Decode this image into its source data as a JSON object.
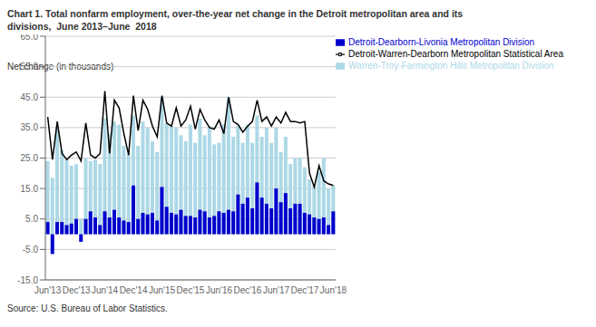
{
  "chart_data": {
    "type": "bar",
    "title": "Chart 1. Total nonfarm employment, over-the-year net change in the Detroit metropolitan area and its\ndivisions,  June 2013–June  2018",
    "ylabel": "Net change (in thousands)",
    "source": "Source: U.S. Bureau of Labor Statistics.",
    "categories": [
      "Jun'13",
      null,
      null,
      null,
      null,
      null,
      "Dec'13",
      null,
      null,
      null,
      null,
      null,
      "Jun'14",
      null,
      null,
      null,
      null,
      null,
      "Dec'14",
      null,
      null,
      null,
      null,
      null,
      "Jun'15",
      null,
      null,
      null,
      null,
      null,
      "Dec'15",
      null,
      null,
      null,
      null,
      null,
      "Jun'16",
      null,
      null,
      null,
      null,
      null,
      "Dec'16",
      null,
      null,
      null,
      null,
      null,
      "Jun'17",
      null,
      null,
      null,
      null,
      null,
      "Dec'17",
      null,
      null,
      null,
      null,
      null,
      "Jun'18"
    ],
    "series": [
      {
        "name": "Warren-Troy-Farmington Hills Metropolitan Division",
        "type": "bar",
        "color": "#ADD8E6",
        "values": [
          24.0,
          18.5,
          35.0,
          27.5,
          24.5,
          22.5,
          23.0,
          5.0,
          25.0,
          24.0,
          24.5,
          23.0,
          38.0,
          33.0,
          37.0,
          36.0,
          29.0,
          26.5,
          39.0,
          29.0,
          37.0,
          35.0,
          30.5,
          27.0,
          45.0,
          36.5,
          35.5,
          35.0,
          32.5,
          30.5,
          36.0,
          30.0,
          38.0,
          32.5,
          35.5,
          29.5,
          30.0,
          36.0,
          45.0,
          32.0,
          35.5,
          30.0,
          36.0,
          30.0,
          39.0,
          32.0,
          35.0,
          30.0,
          35.0,
          27.0,
          32.0,
          23.0,
          25.0,
          25.0,
          22.0,
          18.0,
          16.0,
          20.5,
          25.0,
          15.0,
          16.0
        ]
      },
      {
        "name": "Detroit-Dearborn-Livonia Metropolitan Division",
        "type": "bar",
        "color": "#0000CD",
        "values": [
          4.0,
          -6.5,
          4.0,
          4.0,
          3.0,
          3.5,
          5.0,
          -2.5,
          5.0,
          7.5,
          5.5,
          3.0,
          7.5,
          5.5,
          8.0,
          5.5,
          4.5,
          4.0,
          16.0,
          5.0,
          7.0,
          6.5,
          7.0,
          4.5,
          15.5,
          9.0,
          7.0,
          6.5,
          8.0,
          6.0,
          6.0,
          5.5,
          8.0,
          7.5,
          5.5,
          6.0,
          7.5,
          7.0,
          8.0,
          7.5,
          13.0,
          10.0,
          12.0,
          8.5,
          17.0,
          12.0,
          10.0,
          8.5,
          15.0,
          10.5,
          13.5,
          8.5,
          10.0,
          10.0,
          7.0,
          6.5,
          5.5,
          5.0,
          5.5,
          3.0,
          7.5
        ]
      },
      {
        "name": "Detroit-Warren-Dearborn Metropolitan Statistical Area",
        "type": "line",
        "color": "#000000",
        "values": [
          38.5,
          24.5,
          37.0,
          26.5,
          24.5,
          26.0,
          27.0,
          24.0,
          36.5,
          26.0,
          25.0,
          26.5,
          47.0,
          26.5,
          44.0,
          41.5,
          33.0,
          26.0,
          45.5,
          34.0,
          44.0,
          41.0,
          35.5,
          32.0,
          45.5,
          36.5,
          35.5,
          41.5,
          35.5,
          37.5,
          42.0,
          34.5,
          41.0,
          37.5,
          35.0,
          34.5,
          37.5,
          33.0,
          45.0,
          37.0,
          36.0,
          33.5,
          35.5,
          37.0,
          44.0,
          37.0,
          38.5,
          35.5,
          38.5,
          36.5,
          40.0,
          37.0,
          37.0,
          36.5,
          37.0,
          20.0,
          15.5,
          22.5,
          17.5,
          16.5,
          16.0
        ]
      }
    ],
    "ylim": [
      -15,
      65
    ],
    "yticks": [
      {
        "value": -15,
        "label": "-15.0"
      },
      {
        "value": -5,
        "label": "-5.0"
      },
      {
        "value": 5,
        "label": "5.0"
      },
      {
        "value": 15,
        "label": "15.0"
      },
      {
        "value": 25,
        "label": "25.0"
      },
      {
        "value": 35,
        "label": "35.0"
      },
      {
        "value": 45,
        "label": "45.0"
      },
      {
        "value": 55,
        "label": "55.0"
      },
      {
        "value": 65,
        "label": "65.0"
      }
    ],
    "grid": true,
    "legend": "upper right"
  }
}
